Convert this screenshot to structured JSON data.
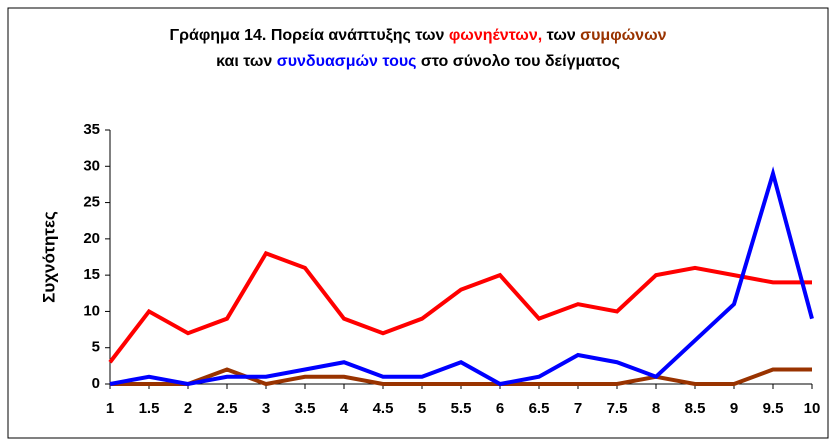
{
  "chart_data": {
    "type": "line",
    "title": [
      [
        {
          "text": "Γράφημα 14. Πορεία ανάπτυξης των ",
          "color": "#000000"
        },
        {
          "text": "φωνηέντων,",
          "color": "#ff0000"
        },
        {
          "text": " των ",
          "color": "#000000"
        },
        {
          "text": "συμφώνων",
          "color": "#993300"
        }
      ],
      [
        {
          "text": "και των ",
          "color": "#000000"
        },
        {
          "text": "συνδυασμών τους",
          "color": "#0000ff"
        },
        {
          "text": " στο σύνολο του δείγματος",
          "color": "#000000"
        }
      ]
    ],
    "y_label": "Συχνότητες",
    "x": [
      1,
      1.5,
      2,
      2.5,
      3,
      3.5,
      4,
      4.5,
      5,
      5.5,
      6,
      6.5,
      7,
      7.5,
      8,
      8.5,
      9,
      9.5,
      10
    ],
    "xlim": [
      1,
      10
    ],
    "xticks": [
      1,
      1.5,
      2,
      2.5,
      3,
      3.5,
      4,
      4.5,
      5,
      5.5,
      6,
      6.5,
      7,
      7.5,
      8,
      8.5,
      9,
      9.5,
      10
    ],
    "ylim": [
      0,
      35
    ],
    "yticks": [
      0,
      5,
      10,
      15,
      20,
      25,
      30,
      35
    ],
    "series": [
      {
        "color": "#ff0000",
        "values": [
          3,
          10,
          7,
          9,
          18,
          16,
          9,
          7,
          9,
          13,
          15,
          9,
          11,
          10,
          15,
          16,
          15,
          14,
          14
        ]
      },
      {
        "color": "#993300",
        "values": [
          0,
          0,
          0,
          2,
          0,
          1,
          1,
          0,
          0,
          0,
          0,
          0,
          0,
          0,
          1,
          0,
          0,
          2,
          2
        ]
      },
      {
        "color": "#0000ff",
        "values": [
          0,
          1,
          0,
          1,
          1,
          2,
          3,
          1,
          1,
          3,
          0,
          1,
          4,
          3,
          1,
          6,
          11,
          29,
          9
        ]
      }
    ]
  }
}
